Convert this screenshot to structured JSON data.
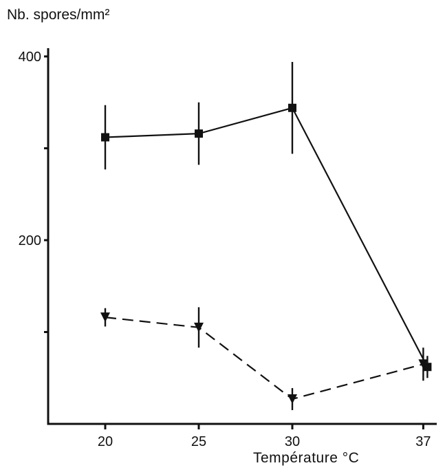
{
  "chart_data": {
    "type": "line",
    "ylabel": "Nb. spores/mm²",
    "xlabel": "Température °C",
    "categories": [
      "20",
      "25",
      "30",
      "37"
    ],
    "x": [
      20,
      25,
      30,
      37
    ],
    "xlim": [
      17,
      38.3
    ],
    "ylim": [
      0,
      410
    ],
    "y_ticks": [
      200,
      400
    ],
    "y_minor_ticks": [
      100,
      300
    ],
    "grid": false,
    "series": [
      {
        "marker": "square",
        "line_style": "solid",
        "values": [
          312,
          316,
          344,
          62
        ],
        "errors": [
          35,
          34,
          50,
          12
        ]
      },
      {
        "marker": "triangle-down",
        "line_style": "dashed",
        "values": [
          116,
          105,
          27,
          65
        ],
        "errors": [
          10,
          22,
          12,
          18
        ]
      }
    ]
  }
}
